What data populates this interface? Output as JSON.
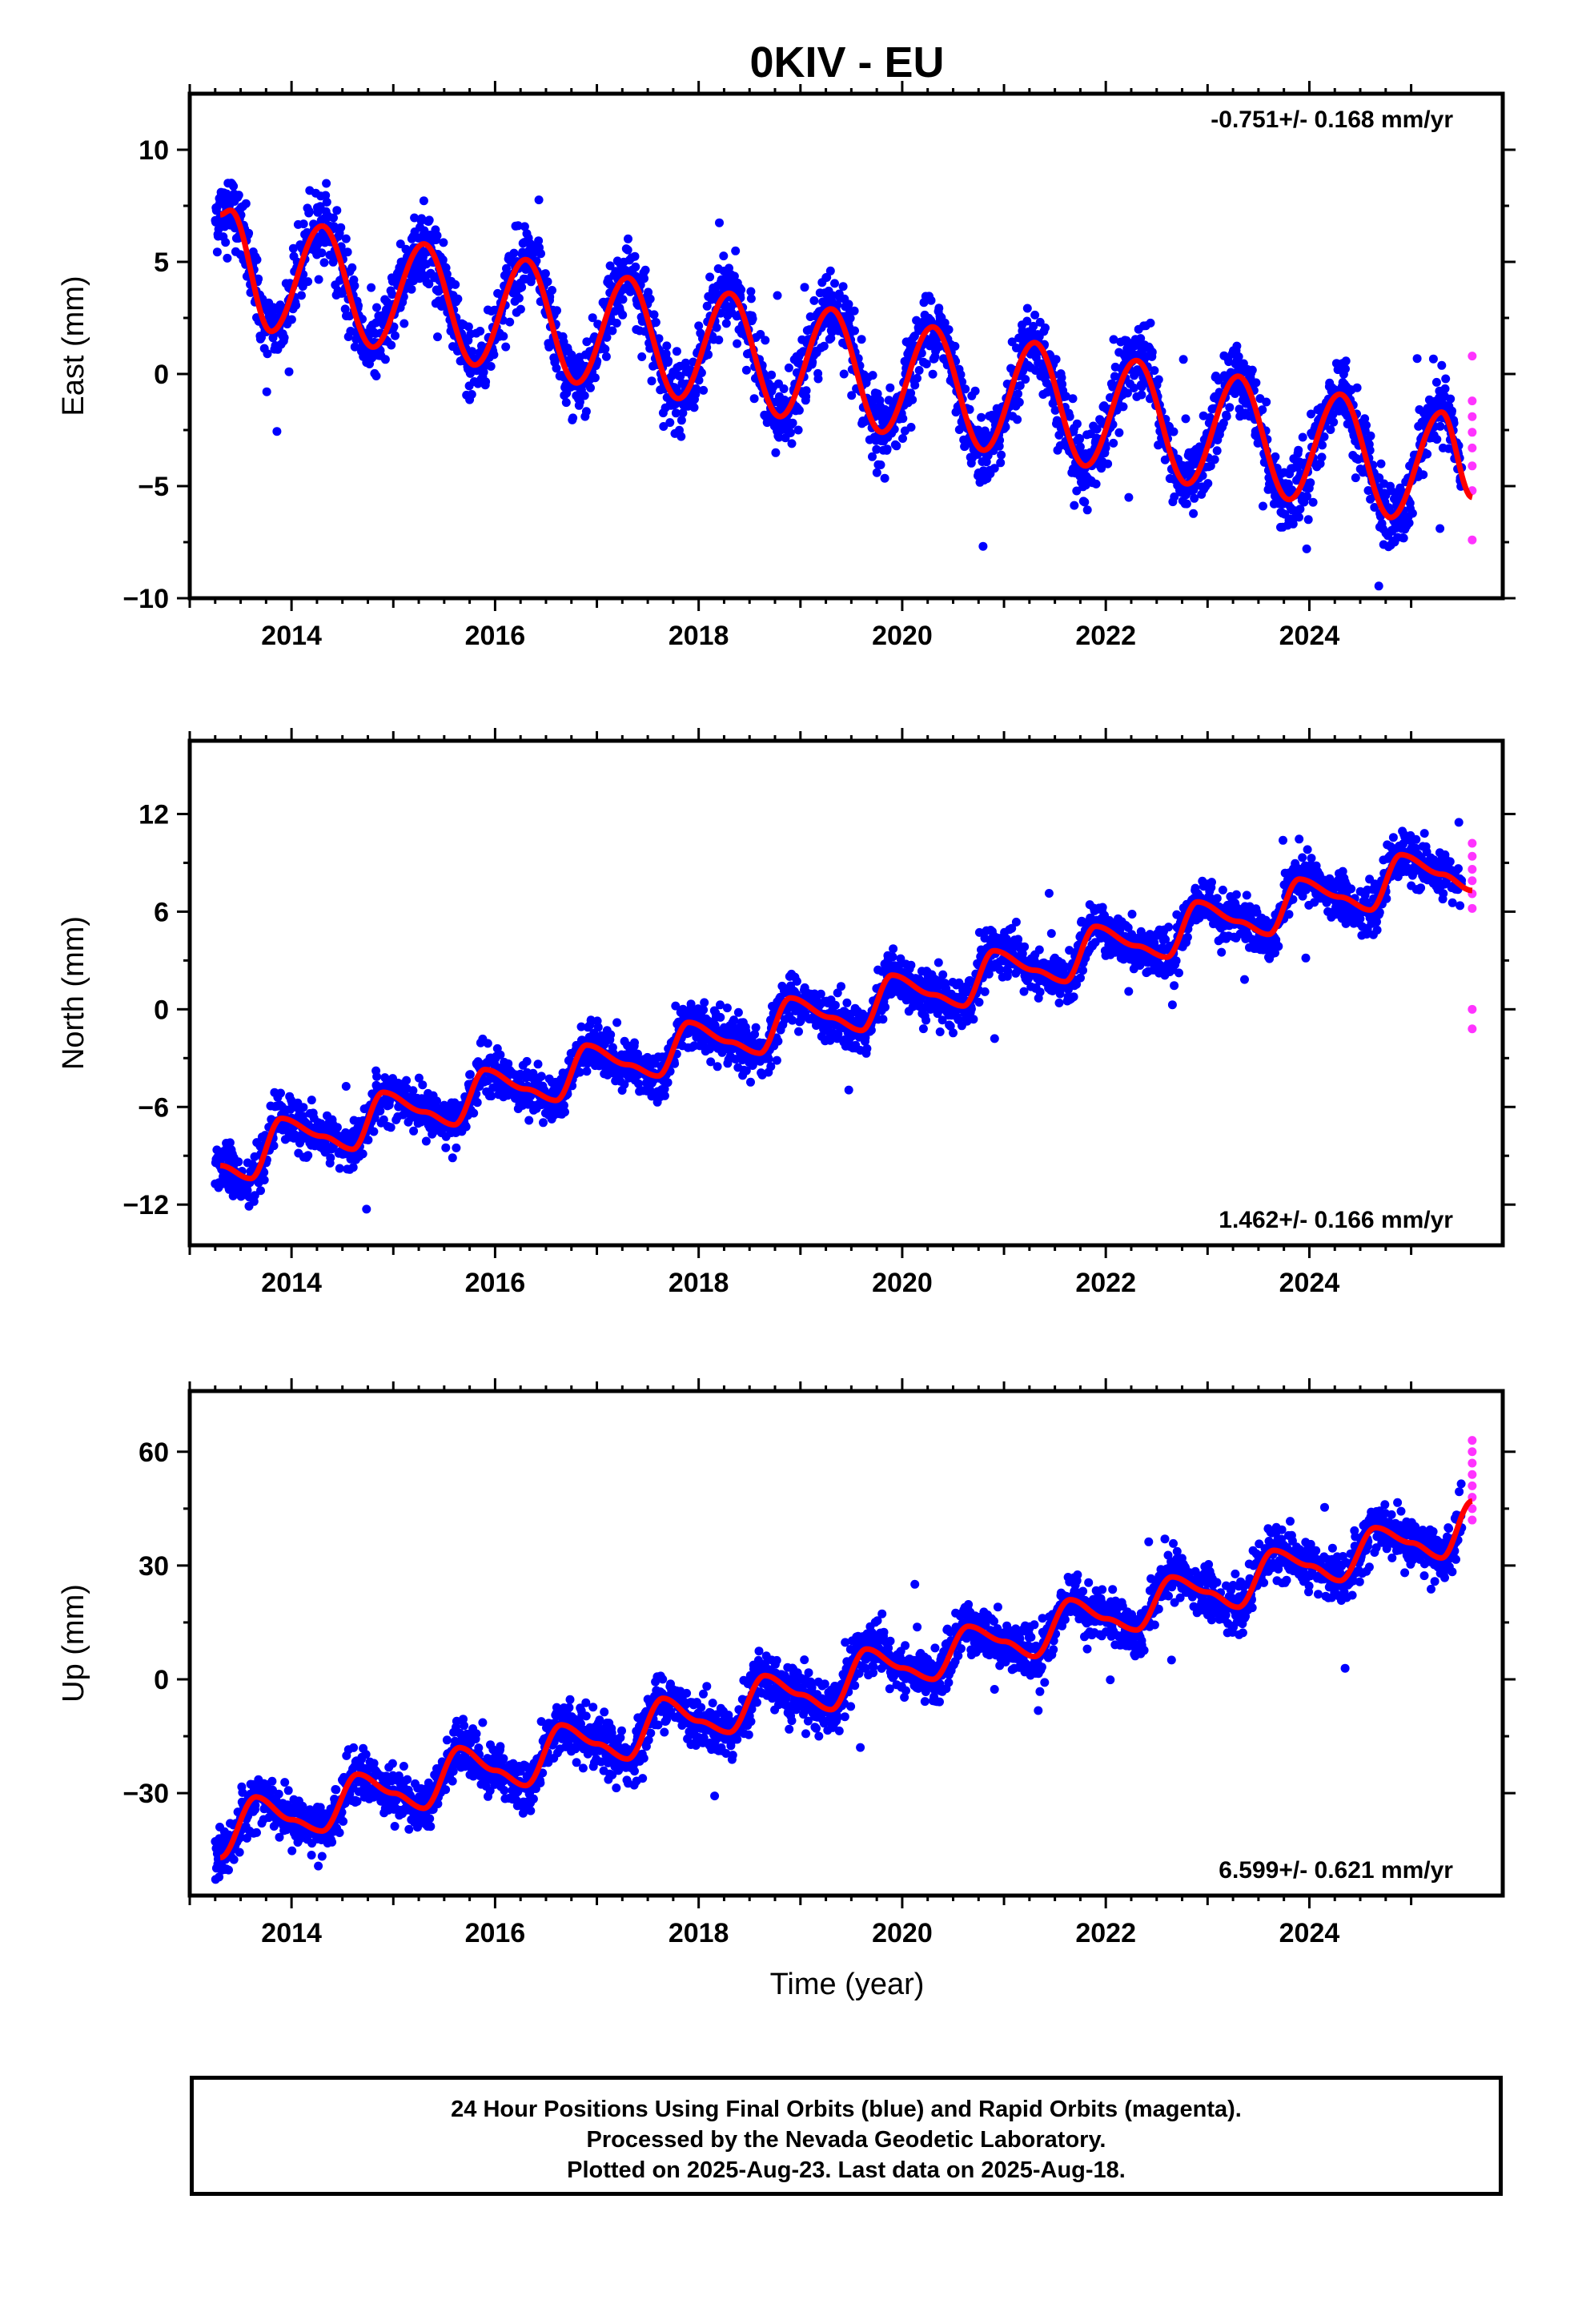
{
  "title": "0KIV - EU",
  "xlabel": "Time (year)",
  "colors": {
    "final_orbits": "#0000ff",
    "rapid_orbits": "#ff33ff",
    "model": "#ff0000",
    "frame": "#000000"
  },
  "chart_data": [
    {
      "type": "scatter",
      "name": "east",
      "ylabel": "East (mm)",
      "rate_label": "-0.751+/- 0.168 mm/yr",
      "rate_position": "top-right",
      "xlim": [
        2013.0,
        2025.9
      ],
      "ylim": [
        -10,
        12.5
      ],
      "xticks": [
        2014,
        2016,
        2018,
        2020,
        2022,
        2024
      ],
      "xtick_labels": [
        "2014",
        "2016",
        "2018",
        "2020",
        "2022",
        "2024"
      ],
      "yticks": [
        -10,
        -5,
        0,
        5,
        10
      ],
      "ytick_labels": [
        "−10",
        "−5",
        "0",
        "5",
        "10"
      ],
      "model": {
        "x": [
          2013.3,
          2013.4,
          2013.8,
          2014.3,
          2014.8,
          2015.3,
          2015.8,
          2016.3,
          2016.8,
          2017.3,
          2017.8,
          2018.3,
          2018.8,
          2019.3,
          2019.8,
          2020.3,
          2020.8,
          2021.3,
          2021.8,
          2022.3,
          2022.8,
          2023.3,
          2023.8,
          2024.3,
          2024.8,
          2025.3,
          2025.6
        ],
        "y": [
          7.1,
          7.3,
          1.9,
          6.6,
          1.2,
          5.8,
          0.4,
          5.1,
          -0.4,
          4.3,
          -1.1,
          3.6,
          -1.9,
          2.9,
          -2.6,
          2.1,
          -3.4,
          1.4,
          -4.1,
          0.6,
          -4.9,
          -0.1,
          -5.6,
          -0.9,
          -6.4,
          -1.7,
          -5.5
        ]
      },
      "final_orbits": {
        "amplitude": 2.6,
        "scatter": 1.3,
        "start": 2013.25,
        "end": 2025.5
      },
      "rapid_orbits": {
        "x": [
          2025.6,
          2025.6,
          2025.6,
          2025.6,
          2025.6,
          2025.6,
          2025.6,
          2025.6
        ],
        "y": [
          0.8,
          -1.2,
          -1.9,
          -2.6,
          -3.3,
          -4.1,
          -5.2,
          -7.4
        ]
      }
    },
    {
      "type": "scatter",
      "name": "north",
      "ylabel": "North (mm)",
      "rate_label": "1.462+/- 0.166 mm/yr",
      "rate_position": "bottom-right",
      "xlim": [
        2013.0,
        2025.9
      ],
      "ylim": [
        -14.5,
        16.5
      ],
      "xticks": [
        2014,
        2016,
        2018,
        2020,
        2022,
        2024
      ],
      "xtick_labels": [
        "2014",
        "2016",
        "2018",
        "2020",
        "2022",
        "2024"
      ],
      "yticks": [
        -12,
        -6,
        0,
        6,
        12
      ],
      "ytick_labels": [
        "−12",
        "−6",
        "0",
        "6",
        "12"
      ],
      "model": {
        "x": [
          2013.3,
          2013.6,
          2013.9,
          2014.3,
          2014.6,
          2014.9,
          2015.3,
          2015.6,
          2015.9,
          2016.3,
          2016.6,
          2016.9,
          2017.3,
          2017.6,
          2017.9,
          2018.3,
          2018.6,
          2018.9,
          2019.3,
          2019.6,
          2019.9,
          2020.3,
          2020.6,
          2020.9,
          2021.3,
          2021.6,
          2021.9,
          2022.3,
          2022.6,
          2022.9,
          2023.3,
          2023.6,
          2023.9,
          2024.3,
          2024.6,
          2024.9,
          2025.3,
          2025.6
        ],
        "y": [
          -9.6,
          -10.4,
          -6.7,
          -7.8,
          -8.6,
          -5.1,
          -6.3,
          -7.1,
          -3.7,
          -4.9,
          -5.6,
          -2.2,
          -3.4,
          -4.1,
          -0.8,
          -2.0,
          -2.7,
          0.7,
          -0.5,
          -1.3,
          2.1,
          0.9,
          0.2,
          3.6,
          2.4,
          1.7,
          5.1,
          3.9,
          3.2,
          6.6,
          5.4,
          4.6,
          8.0,
          6.9,
          6.1,
          9.5,
          8.3,
          7.3
        ]
      },
      "final_orbits": {
        "amplitude": 1.4,
        "scatter": 1.2,
        "start": 2013.25,
        "end": 2025.5
      },
      "rapid_orbits": {
        "x": [
          2025.6,
          2025.6,
          2025.6,
          2025.6,
          2025.6,
          2025.6,
          2025.6,
          2025.6
        ],
        "y": [
          10.2,
          9.4,
          8.6,
          7.9,
          7.1,
          6.2,
          0.0,
          -1.2
        ]
      }
    },
    {
      "type": "scatter",
      "name": "up",
      "ylabel": "Up (mm)",
      "rate_label": "6.599+/- 0.621 mm/yr",
      "rate_position": "bottom-right",
      "xlim": [
        2013.0,
        2025.9
      ],
      "ylim": [
        -57,
        76
      ],
      "xticks": [
        2014,
        2016,
        2018,
        2020,
        2022,
        2024
      ],
      "xtick_labels": [
        "2014",
        "2016",
        "2018",
        "2020",
        "2022",
        "2024"
      ],
      "yticks": [
        -30,
        0,
        30,
        60
      ],
      "ytick_labels": [
        "−30",
        "0",
        "30",
        "60"
      ],
      "model": {
        "x": [
          2013.3,
          2013.65,
          2014.0,
          2014.3,
          2014.65,
          2015.0,
          2015.3,
          2015.65,
          2016.0,
          2016.3,
          2016.65,
          2017.0,
          2017.3,
          2017.65,
          2018.0,
          2018.3,
          2018.65,
          2019.0,
          2019.3,
          2019.65,
          2020.0,
          2020.3,
          2020.65,
          2021.0,
          2021.3,
          2021.65,
          2022.0,
          2022.3,
          2022.65,
          2023.0,
          2023.3,
          2023.65,
          2024.0,
          2024.3,
          2024.65,
          2025.0,
          2025.3,
          2025.6
        ],
        "y": [
          -47,
          -31,
          -37,
          -40,
          -25,
          -30,
          -34,
          -18,
          -24,
          -28,
          -12,
          -17,
          -21,
          -5,
          -11,
          -14,
          1,
          -4,
          -8,
          8,
          3,
          0,
          14,
          10,
          6,
          21,
          16,
          13,
          27,
          23,
          19,
          34,
          30,
          26,
          40,
          36,
          32,
          47
        ]
      },
      "final_orbits": {
        "amplitude": 6.0,
        "scatter": 5.5,
        "start": 2013.25,
        "end": 2025.5
      },
      "rapid_orbits": {
        "x": [
          2025.6,
          2025.6,
          2025.6,
          2025.6,
          2025.6,
          2025.6,
          2025.6,
          2025.6
        ],
        "y": [
          63,
          60,
          57,
          54,
          51,
          48,
          45,
          42
        ]
      }
    }
  ],
  "footer": {
    "line1": "24 Hour Positions Using Final Orbits (blue) and Rapid Orbits (magenta).",
    "line2": "Processed by the Nevada Geodetic Laboratory.",
    "line3": "Plotted on 2025-Aug-23. Last data on 2025-Aug-18."
  }
}
